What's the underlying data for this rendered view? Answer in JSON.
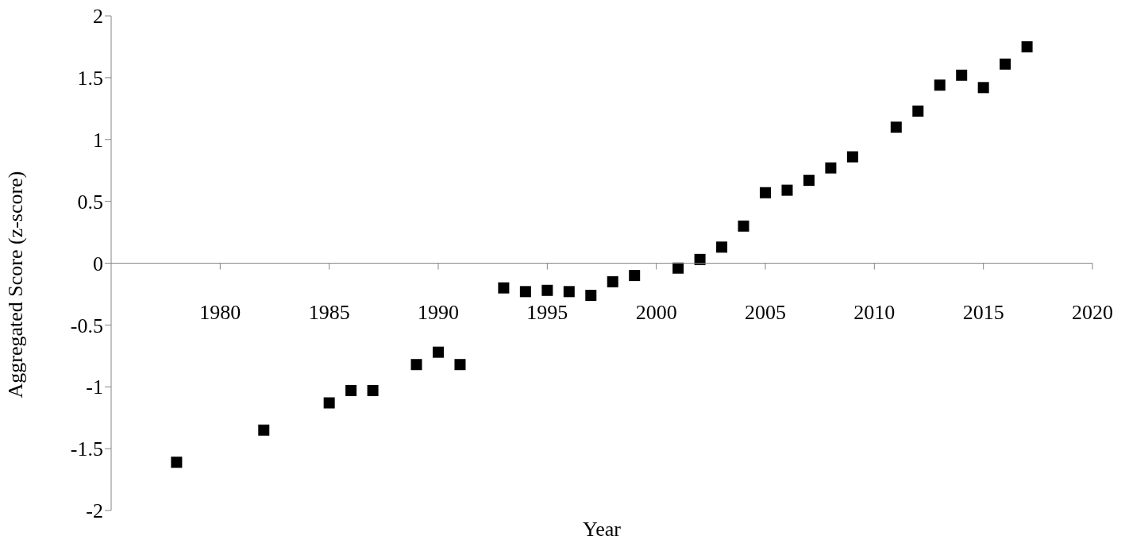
{
  "chart_data": {
    "type": "scatter",
    "xlabel": "Year",
    "ylabel": "Aggregated Score (z-score)",
    "x": [
      1978,
      1982,
      1985,
      1986,
      1987,
      1989,
      1990,
      1991,
      1993,
      1994,
      1995,
      1996,
      1997,
      1998,
      1999,
      2001,
      2002,
      2003,
      2004,
      2005,
      2006,
      2007,
      2008,
      2009,
      2011,
      2012,
      2013,
      2014,
      2015,
      2016,
      2017
    ],
    "series": [
      {
        "color": "#000000",
        "values": [
          -1.61,
          -1.35,
          -1.13,
          -1.03,
          -1.03,
          -0.82,
          -0.72,
          -0.82,
          -0.2,
          -0.23,
          -0.22,
          -0.23,
          -0.26,
          -0.15,
          -0.1,
          -0.04,
          0.03,
          0.13,
          0.3,
          0.57,
          0.59,
          0.67,
          0.77,
          0.86,
          1.1,
          1.23,
          1.44,
          1.52,
          1.42,
          1.61,
          1.75
        ]
      }
    ],
    "xlim": [
      1975,
      2020
    ],
    "xticks": [
      1980,
      1985,
      1990,
      1995,
      2000,
      2005,
      2010,
      2015,
      2020
    ],
    "ylim": [
      -2,
      2
    ],
    "yticks": [
      -2,
      -1.5,
      -1,
      -0.5,
      0,
      0.5,
      1,
      1.5,
      2
    ],
    "marker": "square",
    "grid": false,
    "legend": false
  }
}
